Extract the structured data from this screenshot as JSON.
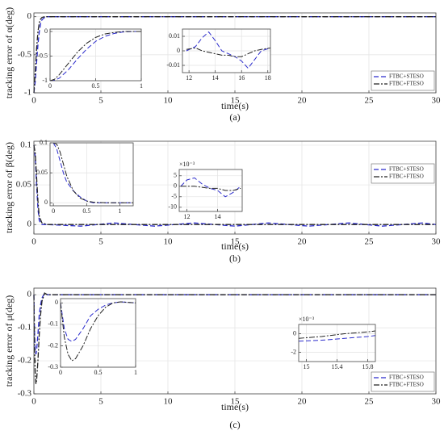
{
  "chart_data": [
    {
      "type": "line",
      "ylabel": "tracking error of α(deg)",
      "xlabel": "time(s)",
      "caption": "(a)",
      "grid": true,
      "legend": "lower right",
      "xlim": [
        0,
        30
      ],
      "xticks": [
        0,
        5,
        10,
        15,
        20,
        25,
        30
      ],
      "ylim": [
        -1,
        0.05
      ],
      "yticks": [
        -1,
        -0.5,
        0
      ],
      "x": [
        0,
        0.1,
        0.2,
        0.3,
        0.4,
        0.5,
        0.6,
        0.8,
        1,
        5,
        10,
        15,
        20,
        25,
        30
      ],
      "series": [
        {
          "name": "FTBC+STESO",
          "color": "#2b2bcc",
          "line_style": "dashed",
          "values": [
            -1,
            -0.85,
            -0.6,
            -0.37,
            -0.2,
            -0.09,
            -0.04,
            -0.01,
            0,
            0,
            0,
            0,
            0,
            0,
            0
          ]
        },
        {
          "name": "FTBC+FTESO",
          "color": "#222222",
          "line_style": "dashdot",
          "values": [
            -1,
            -0.72,
            -0.42,
            -0.2,
            -0.08,
            -0.03,
            -0.01,
            0,
            0,
            0,
            0,
            0,
            0,
            0,
            0
          ]
        }
      ],
      "insets": [
        {
          "xlim": [
            0,
            1
          ],
          "xticks": [
            0,
            0.5,
            1
          ],
          "ylim": [
            -1,
            0.05
          ],
          "yticks": [
            -1,
            -0.5,
            0
          ],
          "x": [
            0,
            0.05,
            0.1,
            0.2,
            0.3,
            0.4,
            0.5,
            0.6,
            0.7,
            0.8,
            0.9,
            1
          ],
          "series": [
            {
              "color": "#2b2bcc",
              "line_style": "dashed",
              "values": [
                -1,
                -0.99,
                -0.95,
                -0.78,
                -0.56,
                -0.36,
                -0.2,
                -0.1,
                -0.04,
                -0.01,
                0,
                0
              ]
            },
            {
              "color": "#222222",
              "line_style": "dashdot",
              "values": [
                -1,
                -0.97,
                -0.88,
                -0.65,
                -0.42,
                -0.24,
                -0.12,
                -0.05,
                -0.02,
                0,
                0,
                0
              ]
            }
          ]
        },
        {
          "xlim": [
            11.5,
            18.2
          ],
          "xticks": [
            12,
            14,
            16,
            18
          ],
          "ylim": [
            -0.015,
            0.015
          ],
          "yticks": [
            -0.01,
            0,
            0.01
          ],
          "x": [
            11.8,
            12.5,
            13,
            13.5,
            14,
            14.5,
            15,
            15.5,
            16,
            16.5,
            17,
            17.5,
            18.2
          ],
          "series": [
            {
              "color": "#2b2bcc",
              "line_style": "dashed",
              "values": [
                0,
                0.003,
                0.009,
                0.013,
                0.007,
                0,
                -0.002,
                -0.004,
                -0.007,
                -0.012,
                -0.006,
                0,
                0.002
              ]
            },
            {
              "color": "#222222",
              "line_style": "dashdot",
              "values": [
                0.001,
                0.002,
                0,
                -0.001,
                -0.002,
                -0.003,
                -0.003,
                -0.004,
                -0.004,
                -0.002,
                0,
                0.001,
                0.002
              ]
            }
          ]
        }
      ]
    },
    {
      "type": "line",
      "ylabel": "tracking error of β(deg)",
      "xlabel": "time(s)",
      "caption": "(b)",
      "grid": true,
      "legend": "upper right",
      "xlim": [
        0,
        30
      ],
      "xticks": [
        0,
        5,
        10,
        15,
        20,
        25,
        30
      ],
      "ylim": [
        -0.012,
        0.105
      ],
      "yticks": [
        0,
        0.05,
        0.1
      ],
      "x": [
        0,
        0.1,
        0.2,
        0.3,
        0.4,
        0.6,
        1,
        3.5,
        6,
        9,
        12,
        15,
        17.5,
        20.5,
        23.5,
        26,
        29,
        30
      ],
      "series": [
        {
          "name": "FTBC+STESO",
          "color": "#2b2bcc",
          "line_style": "dashed",
          "values": [
            0.1,
            0.085,
            0.05,
            0.02,
            0.005,
            0,
            0,
            -0.002,
            0.002,
            -0.002,
            0.002,
            -0.002,
            0.002,
            -0.002,
            0.002,
            -0.002,
            0.002,
            0
          ]
        },
        {
          "name": "FTBC+FTESO",
          "color": "#222222",
          "line_style": "dashdot",
          "values": [
            0.1,
            0.09,
            0.06,
            0.03,
            0.01,
            0.002,
            0,
            0,
            0,
            0,
            0,
            0,
            0,
            0,
            0,
            0,
            0,
            0
          ]
        }
      ],
      "insets": [
        {
          "xlim": [
            -0.05,
            1.2
          ],
          "xticks": [
            0,
            0.5,
            1
          ],
          "ylim": [
            -0.005,
            0.1
          ],
          "yticks": [
            0,
            0.05,
            0.1
          ],
          "x": [
            0,
            0.05,
            0.1,
            0.15,
            0.2,
            0.3,
            0.4,
            0.5,
            0.6,
            0.8,
            1,
            1.2
          ],
          "series": [
            {
              "color": "#2b2bcc",
              "line_style": "dashed",
              "values": [
                0.1,
                0.09,
                0.07,
                0.05,
                0.035,
                0.02,
                0.01,
                0.003,
                0,
                0,
                0,
                0
              ]
            },
            {
              "color": "#222222",
              "line_style": "dashdot",
              "values": [
                0.1,
                0.098,
                0.085,
                0.065,
                0.045,
                0.02,
                0.008,
                0.003,
                0.001,
                0,
                0,
                0
              ]
            }
          ]
        },
        {
          "scale_label": "×10⁻³",
          "xlim": [
            11.5,
            15.6
          ],
          "xticks": [
            12,
            14
          ],
          "ylim": [
            -12,
            8
          ],
          "yticks": [
            -10,
            -5,
            0,
            5
          ],
          "x": [
            11.6,
            12,
            12.5,
            13,
            13.5,
            14,
            14.5,
            15,
            15.5
          ],
          "series": [
            {
              "color": "#2b2bcc",
              "line_style": "dashed",
              "values": [
                0,
                3,
                4,
                1,
                -1,
                -2,
                -5,
                -3,
                0
              ]
            },
            {
              "color": "#222222",
              "line_style": "dashdot",
              "values": [
                0,
                0,
                0,
                -0.5,
                -1,
                -1,
                -2,
                -2,
                -1
              ]
            }
          ]
        }
      ]
    },
    {
      "type": "line",
      "ylabel": "tracking error of μ(deg)",
      "xlabel": "time(s)",
      "caption": "(c)",
      "grid": true,
      "legend": "lower right",
      "xlim": [
        0,
        30
      ],
      "xticks": [
        0,
        5,
        10,
        15,
        20,
        25,
        30
      ],
      "ylim": [
        -0.3,
        0.02
      ],
      "yticks": [
        -0.3,
        -0.2,
        -0.1,
        0
      ],
      "x": [
        0,
        0.05,
        0.1,
        0.15,
        0.2,
        0.3,
        0.4,
        0.5,
        0.6,
        0.8,
        1,
        5,
        10,
        15,
        20,
        25,
        30
      ],
      "series": [
        {
          "name": "FTBC+STESO",
          "color": "#2b2bcc",
          "line_style": "dashed",
          "values": [
            0,
            -0.12,
            -0.17,
            -0.18,
            -0.17,
            -0.12,
            -0.06,
            -0.03,
            -0.01,
            0.005,
            0,
            0,
            0,
            0,
            0,
            0,
            0
          ]
        },
        {
          "name": "FTBC+FTESO",
          "color": "#222222",
          "line_style": "dashdot",
          "values": [
            0,
            -0.16,
            -0.24,
            -0.27,
            -0.26,
            -0.2,
            -0.12,
            -0.06,
            -0.02,
            0.005,
            0,
            0,
            0,
            0,
            0,
            0,
            0
          ]
        }
      ],
      "insets": [
        {
          "xlim": [
            0,
            1
          ],
          "xticks": [
            0,
            0.5,
            1
          ],
          "ylim": [
            -0.3,
            0.02
          ],
          "yticks": [
            -0.3,
            -0.2,
            -0.1,
            0
          ],
          "x": [
            0,
            0.05,
            0.1,
            0.15,
            0.2,
            0.3,
            0.4,
            0.5,
            0.6,
            0.7,
            0.8,
            1
          ],
          "series": [
            {
              "color": "#2b2bcc",
              "line_style": "dashed",
              "values": [
                0,
                -0.12,
                -0.17,
                -0.18,
                -0.17,
                -0.12,
                -0.06,
                -0.03,
                -0.01,
                0,
                0.005,
                0
              ]
            },
            {
              "color": "#222222",
              "line_style": "dashdot",
              "values": [
                0,
                -0.16,
                -0.24,
                -0.27,
                -0.26,
                -0.2,
                -0.12,
                -0.06,
                -0.02,
                0,
                0.005,
                0
              ]
            }
          ]
        },
        {
          "scale_label": "×10⁻³",
          "xlim": [
            14.9,
            15.9
          ],
          "xticks": [
            15,
            15.4,
            15.8
          ],
          "ylim": [
            -3,
            1
          ],
          "yticks": [
            -2,
            0
          ],
          "x": [
            14.9,
            15.2,
            15.5,
            15.8,
            15.9
          ],
          "series": [
            {
              "color": "#2b2bcc",
              "line_style": "dashed",
              "values": [
                -0.8,
                -0.7,
                -0.5,
                -0.3,
                -0.2
              ]
            },
            {
              "color": "#222222",
              "line_style": "dashdot",
              "values": [
                -0.5,
                -0.3,
                0,
                0.2,
                0.3
              ]
            }
          ]
        }
      ]
    }
  ]
}
